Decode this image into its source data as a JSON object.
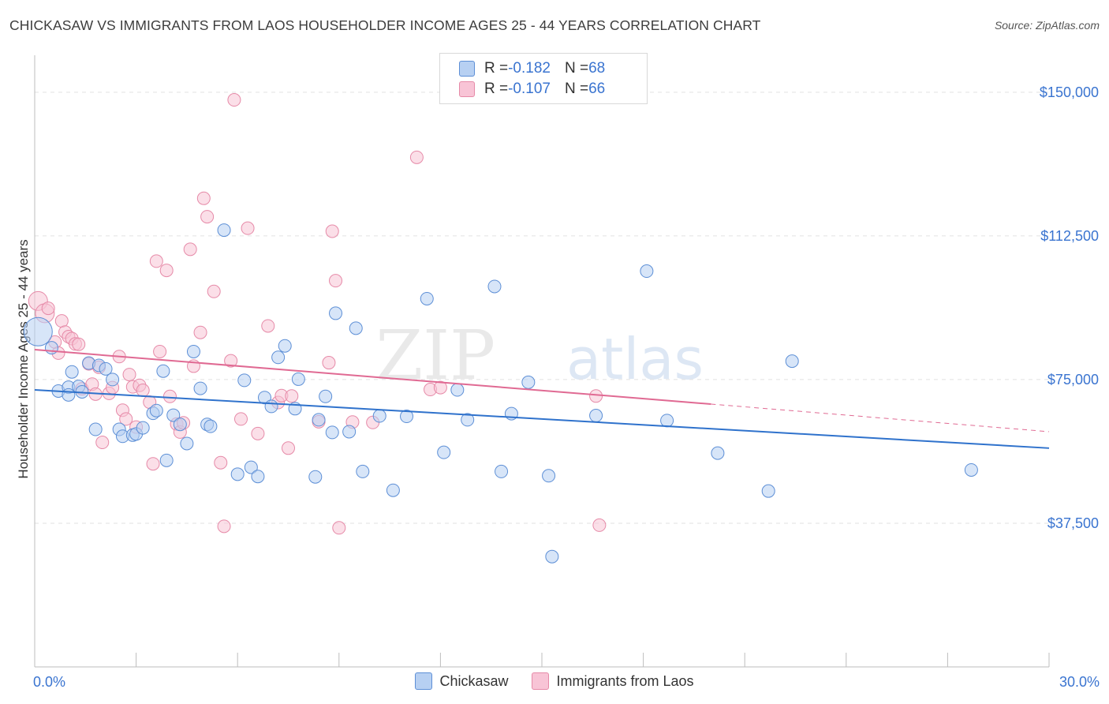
{
  "title": "CHICKASAW VS IMMIGRANTS FROM LAOS HOUSEHOLDER INCOME AGES 25 - 44 YEARS CORRELATION CHART",
  "source": "Source: ZipAtlas.com",
  "watermark": {
    "bold": "ZIP",
    "light": "atlas"
  },
  "legend": {
    "rows": [
      {
        "r_label": "R = ",
        "r_value": "-0.182",
        "n_label": "N = ",
        "n_value": "68"
      },
      {
        "r_label": "R = ",
        "r_value": "-0.107",
        "n_label": "N = ",
        "n_value": "66"
      }
    ]
  },
  "colors": {
    "blue_fill": "#b7d0f2",
    "blue_stroke": "#5d8fd6",
    "blue_line": "#2f72cc",
    "pink_fill": "#f8c4d6",
    "pink_stroke": "#e68aa8",
    "pink_line": "#e06a93",
    "grid": "#e2e2e2",
    "tick_label": "#3a74d0"
  },
  "chart_data": {
    "type": "scatter",
    "title": "CHICKASAW VS IMMIGRANTS FROM LAOS HOUSEHOLDER INCOME AGES 25 - 44 YEARS CORRELATION CHART",
    "xlabel": "",
    "ylabel": "Householder Income Ages 25 - 44 years",
    "xlim": [
      0,
      30
    ],
    "ylim": [
      0,
      158000
    ],
    "x_tick_labels": [
      "0.0%",
      "30.0%"
    ],
    "y_ticks": [
      37500,
      75000,
      112500,
      150000
    ],
    "y_tick_labels": [
      "$37,500",
      "$75,000",
      "$112,500",
      "$150,000"
    ],
    "grid": true,
    "legend_position": "top-center",
    "series": [
      {
        "name": "Chickasaw",
        "color": "#5d8fd6",
        "trend": {
          "x": [
            0,
            30
          ],
          "y": [
            72300,
            57100
          ]
        },
        "points": [
          [
            0.1,
            87500
          ],
          [
            0.5,
            83300
          ],
          [
            0.7,
            72000
          ],
          [
            1.0,
            73000
          ],
          [
            1.0,
            71000
          ],
          [
            1.1,
            77000
          ],
          [
            1.3,
            73200
          ],
          [
            1.4,
            71800
          ],
          [
            1.6,
            79300
          ],
          [
            1.8,
            62000
          ],
          [
            1.9,
            78700
          ],
          [
            2.1,
            77800
          ],
          [
            2.3,
            75000
          ],
          [
            2.5,
            62000
          ],
          [
            2.6,
            60200
          ],
          [
            2.9,
            60500
          ],
          [
            3.0,
            60800
          ],
          [
            3.2,
            62400
          ],
          [
            3.5,
            66200
          ],
          [
            3.6,
            66900
          ],
          [
            3.8,
            77200
          ],
          [
            3.9,
            53900
          ],
          [
            4.1,
            65700
          ],
          [
            4.3,
            63300
          ],
          [
            4.5,
            58300
          ],
          [
            4.7,
            82300
          ],
          [
            4.9,
            72700
          ],
          [
            5.1,
            63300
          ],
          [
            5.2,
            62800
          ],
          [
            5.6,
            114000
          ],
          [
            6.0,
            50300
          ],
          [
            6.2,
            74800
          ],
          [
            6.4,
            52100
          ],
          [
            6.6,
            49700
          ],
          [
            6.8,
            70300
          ],
          [
            7.0,
            68000
          ],
          [
            7.2,
            80800
          ],
          [
            7.4,
            83800
          ],
          [
            7.7,
            67400
          ],
          [
            7.8,
            75100
          ],
          [
            8.3,
            49600
          ],
          [
            8.4,
            64500
          ],
          [
            8.6,
            70600
          ],
          [
            8.8,
            61200
          ],
          [
            8.9,
            92300
          ],
          [
            9.3,
            61400
          ],
          [
            9.5,
            88400
          ],
          [
            9.7,
            51000
          ],
          [
            10.2,
            65500
          ],
          [
            10.6,
            46100
          ],
          [
            11.0,
            65400
          ],
          [
            11.6,
            96100
          ],
          [
            12.1,
            56000
          ],
          [
            12.5,
            72300
          ],
          [
            12.8,
            64500
          ],
          [
            13.6,
            99300
          ],
          [
            13.8,
            51000
          ],
          [
            14.1,
            66100
          ],
          [
            14.6,
            74300
          ],
          [
            15.2,
            49900
          ],
          [
            15.3,
            28800
          ],
          [
            16.6,
            65600
          ],
          [
            18.1,
            103300
          ],
          [
            18.7,
            64300
          ],
          [
            20.2,
            55800
          ],
          [
            21.7,
            45900
          ],
          [
            22.4,
            79800
          ],
          [
            27.7,
            51400
          ]
        ]
      },
      {
        "name": "Immigrants from Laos",
        "color": "#e68aa8",
        "trend": {
          "x": [
            0,
            20
          ],
          "y": [
            82800,
            68600
          ]
        },
        "trend_dashed": {
          "x": [
            20,
            30
          ],
          "y": [
            68600,
            61400
          ]
        },
        "points": [
          [
            0.1,
            95500
          ],
          [
            0.3,
            92300
          ],
          [
            0.4,
            93600
          ],
          [
            0.6,
            84800
          ],
          [
            0.7,
            81900
          ],
          [
            0.8,
            90300
          ],
          [
            0.9,
            87400
          ],
          [
            1.0,
            86200
          ],
          [
            1.1,
            85700
          ],
          [
            1.2,
            84300
          ],
          [
            1.3,
            84200
          ],
          [
            1.4,
            72600
          ],
          [
            1.6,
            79100
          ],
          [
            1.7,
            73800
          ],
          [
            1.8,
            71200
          ],
          [
            1.9,
            78200
          ],
          [
            2.0,
            58600
          ],
          [
            2.2,
            71400
          ],
          [
            2.3,
            72900
          ],
          [
            2.5,
            81000
          ],
          [
            2.6,
            67000
          ],
          [
            2.7,
            64700
          ],
          [
            2.8,
            76300
          ],
          [
            2.9,
            73100
          ],
          [
            3.0,
            62600
          ],
          [
            3.1,
            73500
          ],
          [
            3.2,
            72200
          ],
          [
            3.4,
            69100
          ],
          [
            3.5,
            53000
          ],
          [
            3.6,
            105900
          ],
          [
            3.7,
            82300
          ],
          [
            3.9,
            103500
          ],
          [
            4.0,
            70600
          ],
          [
            4.2,
            63400
          ],
          [
            4.3,
            61300
          ],
          [
            4.4,
            63700
          ],
          [
            4.6,
            109000
          ],
          [
            4.7,
            78500
          ],
          [
            4.9,
            87300
          ],
          [
            5.0,
            122300
          ],
          [
            5.1,
            117500
          ],
          [
            5.3,
            98000
          ],
          [
            5.5,
            53300
          ],
          [
            5.6,
            36700
          ],
          [
            5.8,
            79900
          ],
          [
            5.9,
            148000
          ],
          [
            6.1,
            64700
          ],
          [
            6.3,
            114500
          ],
          [
            6.6,
            60900
          ],
          [
            6.9,
            89000
          ],
          [
            7.2,
            69000
          ],
          [
            7.3,
            70800
          ],
          [
            7.5,
            57100
          ],
          [
            7.6,
            70700
          ],
          [
            8.4,
            64000
          ],
          [
            8.7,
            79400
          ],
          [
            8.8,
            113700
          ],
          [
            8.9,
            100800
          ],
          [
            9.0,
            36300
          ],
          [
            9.4,
            63900
          ],
          [
            10.0,
            63800
          ],
          [
            11.3,
            133000
          ],
          [
            11.7,
            72400
          ],
          [
            12.0,
            72900
          ],
          [
            16.6,
            70700
          ],
          [
            16.7,
            37000
          ]
        ]
      }
    ]
  }
}
